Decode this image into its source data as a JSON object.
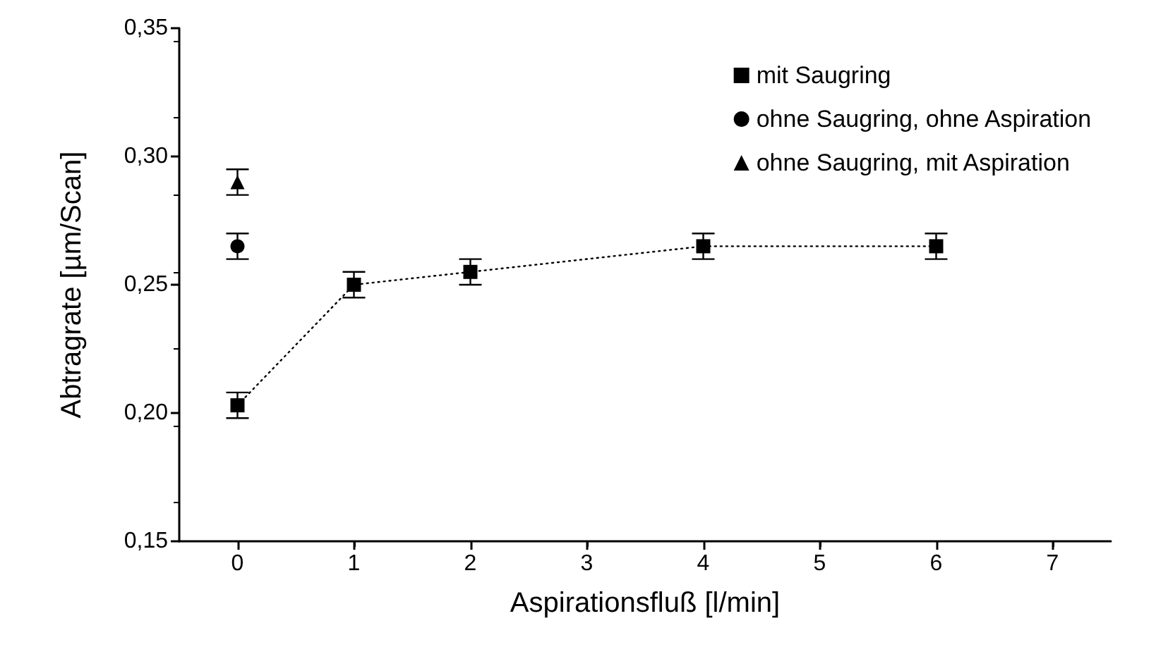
{
  "chart_data": {
    "type": "line",
    "xlabel": "Aspirationsfluß [l/min]",
    "ylabel": "Abtragrate [µm/Scan]",
    "xlim": [
      -0.5,
      7.5
    ],
    "xticks": [
      0,
      1,
      2,
      3,
      4,
      5,
      6,
      7
    ],
    "ylim": [
      0.15,
      0.35
    ],
    "yticks": [
      {
        "value": 0.15,
        "label": "0,15"
      },
      {
        "value": 0.2,
        "label": "0,20"
      },
      {
        "value": 0.25,
        "label": "0,25"
      },
      {
        "value": 0.3,
        "label": "0,30"
      },
      {
        "value": 0.35,
        "label": "0,35"
      }
    ],
    "grid": false,
    "legend": "top right",
    "series": [
      {
        "name": "mit Saugring",
        "color": "#000000",
        "marker": "square",
        "line_style": "dotted",
        "x": [
          0,
          1,
          2,
          4,
          6
        ],
        "values": [
          0.203,
          0.25,
          0.255,
          0.265,
          0.265
        ],
        "errors": [
          0.005,
          0.005,
          0.005,
          0.005,
          0.005
        ]
      },
      {
        "name": "ohne Saugring, ohne Aspiration",
        "type": "scatter",
        "color": "#000000",
        "marker": "circle",
        "x": [
          0
        ],
        "values": [
          0.265
        ],
        "errors": [
          0.005
        ]
      },
      {
        "name": "ohne Saugring, mit Aspiration",
        "type": "scatter",
        "color": "#000000",
        "marker": "triangle",
        "x": [
          0
        ],
        "values": [
          0.29
        ],
        "errors": [
          0.005
        ]
      }
    ]
  }
}
